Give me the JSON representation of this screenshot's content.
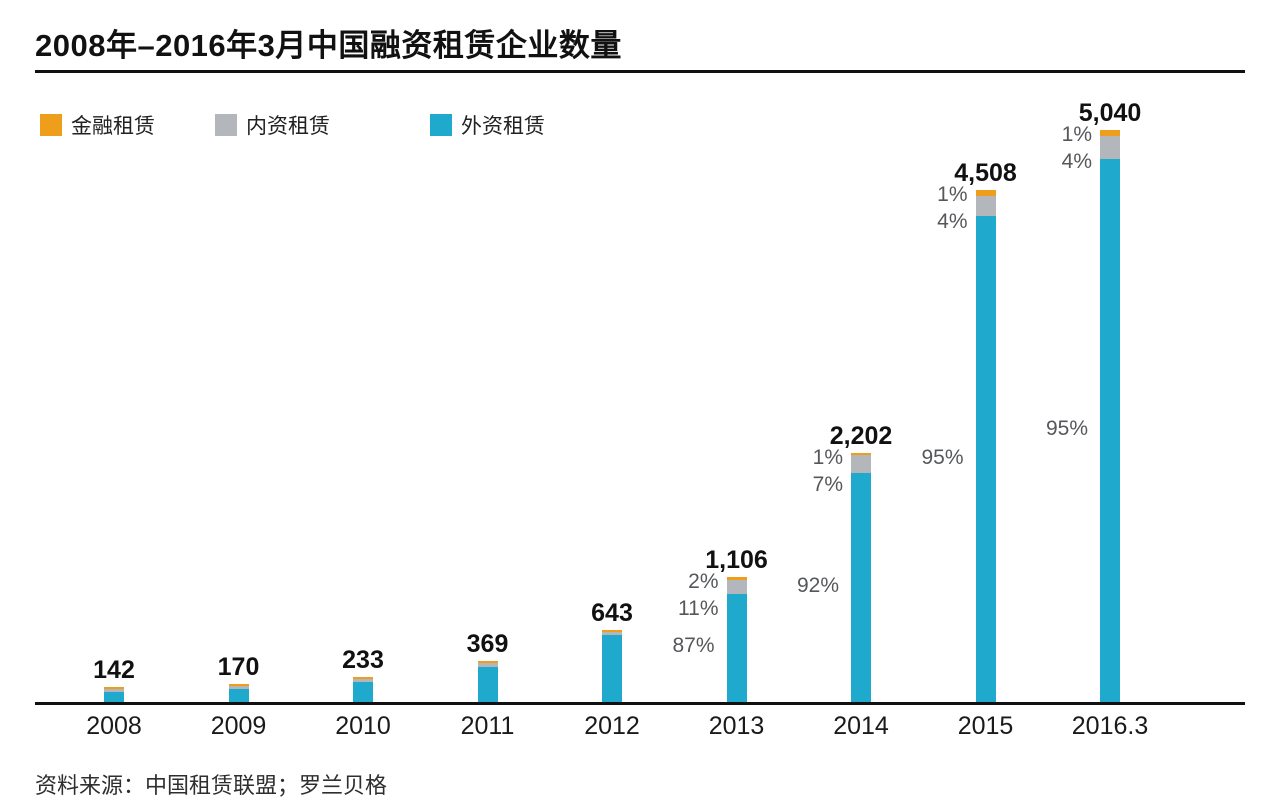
{
  "chart_data": {
    "type": "bar",
    "stacked": true,
    "title": "2008年–2016年3月中国融资租赁企业数量",
    "source": "资料来源：中国租赁联盟；罗兰贝格",
    "legend": [
      {
        "name": "金融租赁",
        "color": "#EF9E1B"
      },
      {
        "name": "内资租赁",
        "color": "#B3B6BA"
      },
      {
        "name": "外资租赁",
        "color": "#1FAACD"
      }
    ],
    "categories": [
      "2008",
      "2009",
      "2010",
      "2011",
      "2012",
      "2013",
      "2014",
      "2015",
      "2016.3"
    ],
    "totals": [
      142,
      170,
      233,
      369,
      643,
      1106,
      2202,
      4508,
      5040
    ],
    "total_labels": [
      "142",
      "170",
      "233",
      "369",
      "643",
      "1,106",
      "2,202",
      "4,508",
      "5,040"
    ],
    "pct_breakdown": [
      null,
      null,
      null,
      null,
      null,
      {
        "finance": 2,
        "domestic": 11,
        "foreign": 87
      },
      {
        "finance": 1,
        "domestic": 7,
        "foreign": 92
      },
      {
        "finance": 1,
        "domestic": 4,
        "foreign": 95
      },
      {
        "finance": 1,
        "domestic": 4,
        "foreign": 95
      }
    ],
    "pct_labels": [
      null,
      null,
      null,
      null,
      null,
      {
        "finance": "2%",
        "domestic": "11%",
        "foreign": "87%"
      },
      {
        "finance": "1%",
        "domestic": "7%",
        "foreign": "92%"
      },
      {
        "finance": "1%",
        "domestic": "4%",
        "foreign": "95%"
      },
      {
        "finance": "1%",
        "domestic": "4%",
        "foreign": "95%"
      }
    ],
    "ylim": [
      0,
      5040
    ],
    "legend_position": "top-left",
    "grid": false
  }
}
